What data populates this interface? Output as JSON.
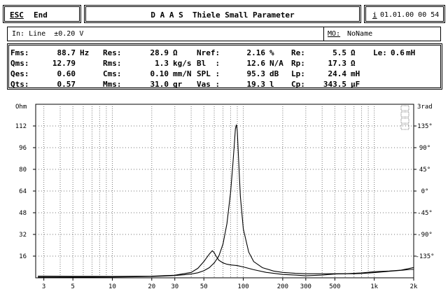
{
  "header": {
    "esc_label": "ESC",
    "end_label": "End",
    "title": "D A A S  Thiele Small Parameter",
    "info_key": "i",
    "datetime": "01.01.00 00 54"
  },
  "input_bar": {
    "input_text": "In: Line  ±0.20 V",
    "mo_label": "MO:",
    "mo_value": "NoName"
  },
  "params": {
    "col1": [
      {
        "label": "Fms:",
        "value": "88.7",
        "unit": "Hz"
      },
      {
        "label": "Qms:",
        "value": "12.79",
        "unit": ""
      },
      {
        "label": "Qes:",
        "value": "0.60",
        "unit": ""
      },
      {
        "label": "Qts:",
        "value": "0.57",
        "unit": ""
      }
    ],
    "col2": [
      {
        "label": "Res:",
        "value": "28.9",
        "unit": "Ω"
      },
      {
        "label": "Rms:",
        "value": "1.3",
        "unit": "kg/s"
      },
      {
        "label": "Cms:",
        "value": "0.10",
        "unit": "mm/N"
      },
      {
        "label": "Mms:",
        "value": "31.0",
        "unit": "gr"
      }
    ],
    "col3": [
      {
        "label": "Nref:",
        "value": "2.16",
        "unit": "%"
      },
      {
        "label": "Bl  :",
        "value": "12.6",
        "unit": "N/A"
      },
      {
        "label": "SPL :",
        "value": "95.3",
        "unit": "dB"
      },
      {
        "label": "Vas :",
        "value": "19.3",
        "unit": "l"
      }
    ],
    "col4": [
      {
        "label": "Re:",
        "value": "5.5",
        "unit": "Ω"
      },
      {
        "label": "Rp:",
        "value": "17.3",
        "unit": "Ω"
      },
      {
        "label": "Lp:",
        "value": "24.4",
        "unit": "mH"
      },
      {
        "label": "Cp:",
        "value": "343.5",
        "unit": "µF"
      }
    ],
    "le": {
      "label": "Le:",
      "value": "0.6",
      "unit": "mH"
    }
  },
  "chart_data": {
    "type": "line",
    "x_scale": "log",
    "xlim": [
      2.6,
      2000
    ],
    "x_ticks": [
      {
        "v": 3,
        "label": "3"
      },
      {
        "v": 5,
        "label": "5"
      },
      {
        "v": 10,
        "label": "10"
      },
      {
        "v": 20,
        "label": "20"
      },
      {
        "v": 30,
        "label": "30"
      },
      {
        "v": 50,
        "label": "50"
      },
      {
        "v": 100,
        "label": "100"
      },
      {
        "v": 200,
        "label": "200"
      },
      {
        "v": 300,
        "label": "300"
      },
      {
        "v": 500,
        "label": "500"
      },
      {
        "v": 1000,
        "label": "1k"
      },
      {
        "v": 2000,
        "label": "2k"
      }
    ],
    "ylim": [
      0,
      128
    ],
    "y_left_unit": "Ohm",
    "y_left_ticks": [
      16,
      32,
      48,
      64,
      80,
      96,
      112
    ],
    "y_right_unit": "3rad",
    "y_right_ticks": [
      "135°",
      "90°",
      "45°",
      "0°",
      "-45°",
      "-90°",
      "-135°"
    ],
    "grid": true,
    "series": [
      {
        "x": [
          2.7,
          3,
          4,
          5,
          7,
          10,
          15,
          20,
          25,
          30,
          35,
          40,
          45,
          50,
          55,
          60,
          65,
          70,
          75,
          80,
          83,
          85,
          87,
          88.7,
          90,
          92,
          95,
          100,
          110,
          120,
          140,
          170,
          200,
          250,
          300,
          400,
          500,
          600,
          700,
          800,
          1000,
          1300,
          1600,
          1900,
          2000
        ],
        "y": [
          0.5,
          0.5,
          0.5,
          0.5,
          0.5,
          0.6,
          0.8,
          1,
          1.3,
          1.7,
          2.2,
          2.8,
          3.7,
          5.2,
          7.5,
          11,
          16,
          25,
          40,
          63,
          82,
          96,
          110,
          113,
          108,
          88,
          60,
          36,
          19,
          12,
          7.5,
          5,
          4,
          3.3,
          3,
          3,
          3,
          3,
          3,
          3.2,
          3.8,
          4.8,
          5.5,
          6.2,
          6.2
        ]
      },
      {
        "x": [
          2.7,
          3,
          5,
          10,
          20,
          30,
          40,
          45,
          50,
          55,
          58,
          60,
          62,
          65,
          70,
          75,
          80,
          90,
          100,
          120,
          150,
          200,
          250,
          300,
          400,
          500,
          600,
          700,
          800,
          1000,
          1300,
          1600,
          2000
        ],
        "y": [
          1.2,
          1.2,
          1.1,
          1,
          1.2,
          1.9,
          4,
          7,
          12,
          17.5,
          20,
          18.5,
          16,
          13,
          11,
          10,
          9.5,
          9,
          8,
          6,
          4,
          2.5,
          2,
          1.5,
          2,
          2.8,
          3,
          3.3,
          3.6,
          4.5,
          5,
          5.7,
          7.6
        ]
      }
    ]
  }
}
